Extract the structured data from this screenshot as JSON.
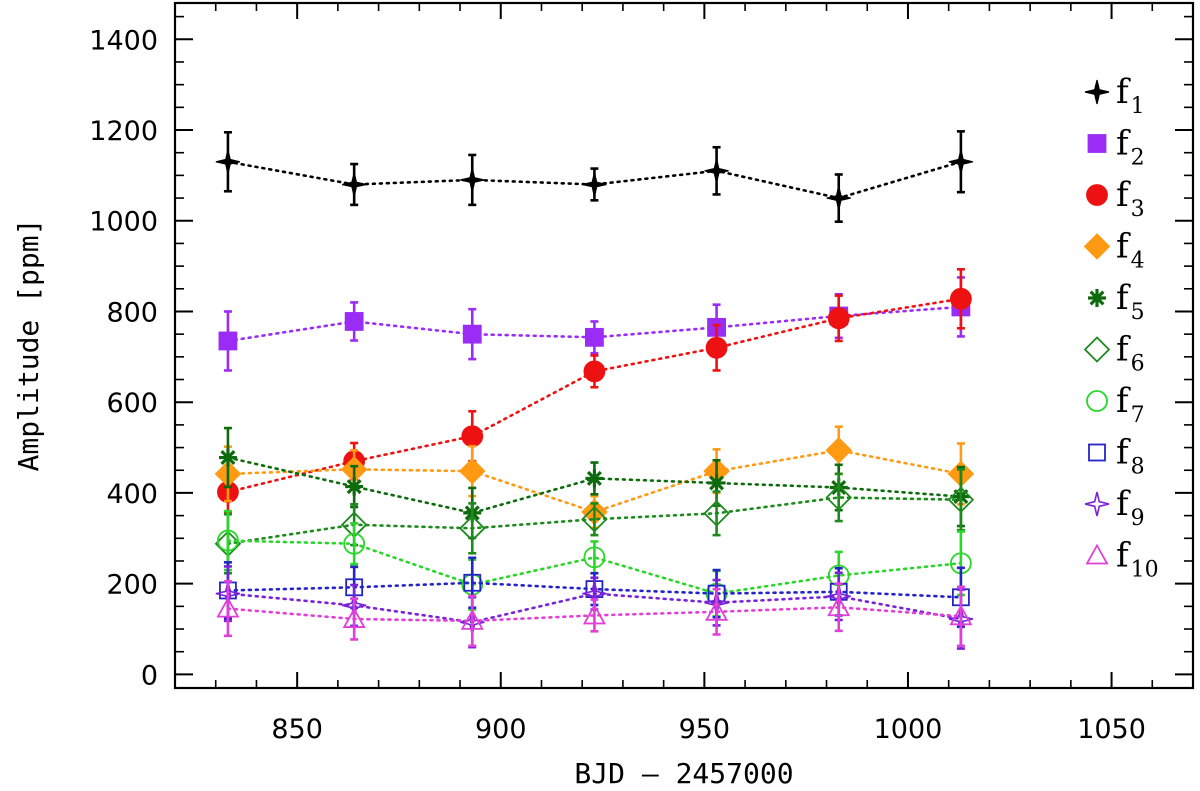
{
  "chart_data": {
    "type": "scatter",
    "title": "",
    "xlabel": "BJD – 2457000",
    "ylabel": "Amplitude [ppm]",
    "xlim": [
      820,
      1070
    ],
    "ylim": [
      -30,
      1480
    ],
    "xticks": [
      850,
      900,
      950,
      1000,
      1050
    ],
    "yticks": [
      0,
      200,
      400,
      600,
      800,
      1000,
      1200,
      1400
    ],
    "x": [
      833,
      864,
      893,
      923,
      953,
      983,
      1013
    ],
    "legend_position": "right",
    "series": [
      {
        "name": "f",
        "sub": "1",
        "marker": "star4",
        "filled": true,
        "color": "#000000",
        "values": [
          1130,
          1080,
          1090,
          1080,
          1110,
          1050,
          1130
        ],
        "errors": [
          65,
          45,
          55,
          35,
          52,
          52,
          67
        ]
      },
      {
        "name": "f",
        "sub": "2",
        "marker": "square",
        "filled": true,
        "color": "#9a2cf5",
        "values": [
          735,
          778,
          750,
          743,
          765,
          790,
          810
        ],
        "errors": [
          65,
          42,
          55,
          35,
          50,
          48,
          65
        ]
      },
      {
        "name": "f",
        "sub": "3",
        "marker": "circle",
        "filled": true,
        "color": "#ee1111",
        "values": [
          402,
          470,
          525,
          668,
          720,
          785,
          828
        ],
        "errors": [
          45,
          40,
          55,
          35,
          50,
          50,
          65
        ]
      },
      {
        "name": "f",
        "sub": "4",
        "marker": "diamond",
        "filled": true,
        "color": "#ff9a12",
        "values": [
          442,
          452,
          448,
          358,
          448,
          494,
          442
        ],
        "errors": [
          60,
          42,
          55,
          35,
          48,
          52,
          67
        ]
      },
      {
        "name": "f",
        "sub": "5",
        "marker": "asterisk",
        "filled": false,
        "color": "#0d6b0d",
        "values": [
          478,
          414,
          356,
          432,
          422,
          412,
          392
        ],
        "errors": [
          65,
          45,
          55,
          35,
          50,
          50,
          65
        ]
      },
      {
        "name": "f",
        "sub": "6",
        "marker": "diamond",
        "filled": false,
        "color": "#1e8a1e",
        "values": [
          288,
          330,
          322,
          342,
          355,
          390,
          385
        ],
        "errors": [
          65,
          45,
          55,
          35,
          48,
          52,
          67
        ]
      },
      {
        "name": "f",
        "sub": "7",
        "marker": "circle",
        "filled": false,
        "color": "#2ad62a",
        "values": [
          295,
          288,
          198,
          258,
          178,
          218,
          245
        ],
        "errors": [
          65,
          45,
          55,
          35,
          50,
          52,
          70
        ]
      },
      {
        "name": "f",
        "sub": "8",
        "marker": "square",
        "filled": false,
        "color": "#2424c8",
        "values": [
          185,
          192,
          202,
          188,
          178,
          182,
          170
        ],
        "errors": [
          62,
          45,
          55,
          35,
          52,
          52,
          65
        ]
      },
      {
        "name": "f",
        "sub": "9",
        "marker": "star4",
        "filled": false,
        "color": "#7a22d8",
        "values": [
          178,
          152,
          115,
          178,
          158,
          172,
          122
        ],
        "errors": [
          60,
          45,
          55,
          35,
          50,
          52,
          65
        ]
      },
      {
        "name": "f",
        "sub": "10",
        "marker": "triangle",
        "filled": false,
        "color": "#e040d8",
        "values": [
          145,
          122,
          118,
          130,
          138,
          148,
          128
        ],
        "errors": [
          60,
          45,
          55,
          35,
          50,
          52,
          65
        ]
      }
    ]
  }
}
